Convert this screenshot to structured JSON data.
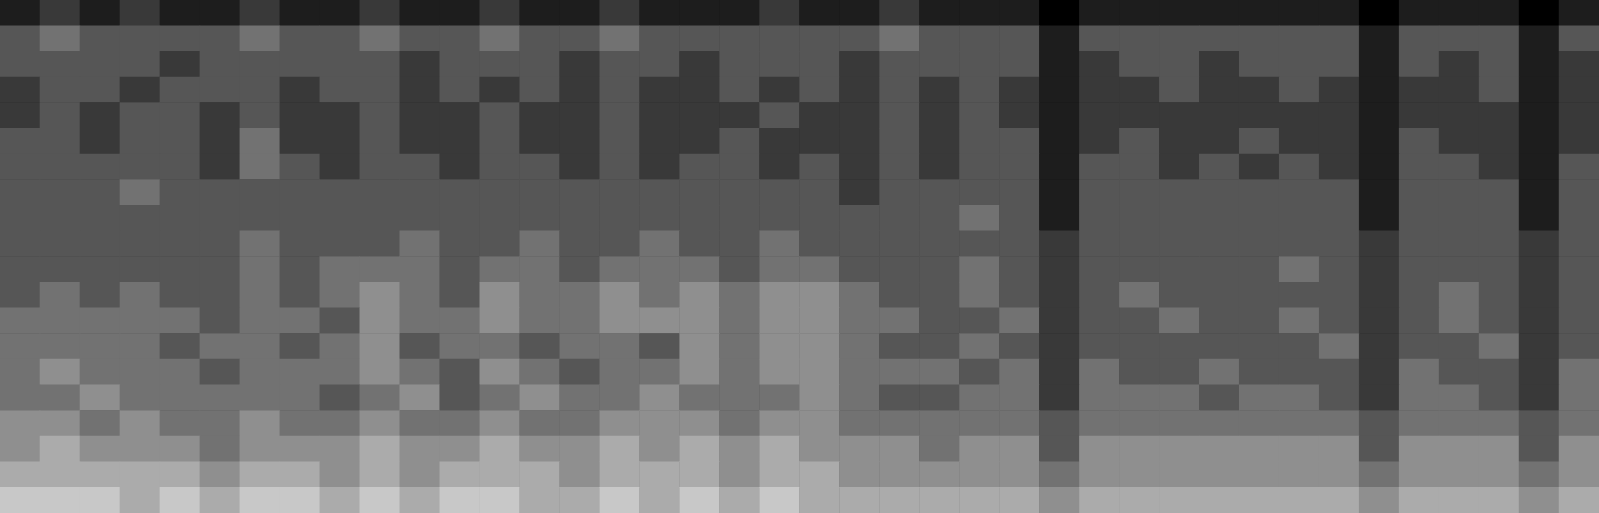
{
  "chart_data": {
    "type": "heatmap",
    "color": "#c8c8c8",
    "tick_labels": false,
    "grid": false,
    "cells": [
      [
        1,
        2,
        1,
        2,
        1,
        1,
        2,
        1,
        1,
        2,
        1,
        1,
        2,
        1,
        1,
        2,
        1,
        1,
        1,
        2,
        1,
        1,
        2,
        1,
        1,
        1,
        0,
        1,
        1,
        1,
        1,
        1,
        1,
        1,
        0,
        1,
        1,
        1,
        0,
        1
      ],
      [
        3,
        4,
        3,
        3,
        3,
        3,
        4,
        3,
        3,
        4,
        3,
        3,
        4,
        3,
        3,
        4,
        3,
        3,
        3,
        3,
        3,
        3,
        4,
        3,
        3,
        3,
        1,
        3,
        3,
        3,
        3,
        3,
        3,
        3,
        1,
        3,
        3,
        3,
        1,
        3
      ],
      [
        3,
        3,
        3,
        3,
        2,
        3,
        3,
        3,
        3,
        3,
        2,
        3,
        3,
        3,
        2,
        3,
        3,
        2,
        3,
        3,
        3,
        2,
        3,
        3,
        3,
        3,
        1,
        2,
        3,
        3,
        2,
        3,
        3,
        3,
        1,
        3,
        2,
        3,
        1,
        2
      ],
      [
        2,
        3,
        3,
        2,
        3,
        3,
        3,
        2,
        3,
        3,
        2,
        3,
        2,
        3,
        2,
        3,
        2,
        2,
        3,
        2,
        3,
        2,
        3,
        2,
        3,
        2,
        1,
        2,
        2,
        3,
        2,
        2,
        3,
        2,
        1,
        2,
        2,
        3,
        1,
        2
      ],
      [
        2,
        3,
        2,
        3,
        3,
        2,
        3,
        2,
        2,
        3,
        2,
        2,
        3,
        2,
        2,
        3,
        2,
        2,
        2,
        3,
        2,
        2,
        3,
        2,
        3,
        2,
        1,
        2,
        2,
        2,
        2,
        2,
        2,
        2,
        1,
        2,
        2,
        2,
        1,
        2
      ],
      [
        3,
        3,
        2,
        3,
        3,
        2,
        4,
        2,
        2,
        3,
        2,
        2,
        3,
        2,
        2,
        3,
        2,
        2,
        3,
        2,
        2,
        2,
        3,
        2,
        3,
        3,
        1,
        2,
        3,
        2,
        2,
        3,
        2,
        2,
        1,
        3,
        2,
        2,
        1,
        2
      ],
      [
        3,
        3,
        3,
        3,
        3,
        2,
        4,
        3,
        2,
        3,
        3,
        2,
        3,
        3,
        2,
        3,
        2,
        3,
        3,
        2,
        3,
        2,
        3,
        2,
        3,
        3,
        1,
        3,
        3,
        2,
        3,
        2,
        3,
        2,
        1,
        3,
        3,
        2,
        1,
        3
      ],
      [
        3,
        3,
        3,
        4,
        3,
        3,
        3,
        3,
        3,
        3,
        3,
        3,
        3,
        3,
        3,
        3,
        3,
        3,
        3,
        3,
        3,
        2,
        3,
        3,
        3,
        3,
        1,
        3,
        3,
        3,
        3,
        3,
        3,
        3,
        1,
        3,
        3,
        3,
        1,
        3
      ],
      [
        3,
        3,
        3,
        3,
        3,
        3,
        3,
        3,
        3,
        3,
        3,
        3,
        3,
        3,
        3,
        3,
        3,
        3,
        3,
        3,
        3,
        3,
        3,
        3,
        4,
        3,
        1,
        3,
        3,
        3,
        3,
        3,
        3,
        3,
        1,
        3,
        3,
        3,
        1,
        3
      ],
      [
        3,
        3,
        3,
        3,
        3,
        3,
        4,
        3,
        3,
        3,
        4,
        3,
        3,
        4,
        3,
        3,
        4,
        3,
        3,
        4,
        3,
        3,
        3,
        3,
        3,
        3,
        2,
        3,
        3,
        3,
        3,
        3,
        3,
        3,
        2,
        3,
        3,
        3,
        2,
        3
      ],
      [
        3,
        3,
        3,
        3,
        3,
        3,
        4,
        3,
        4,
        4,
        4,
        3,
        4,
        4,
        3,
        4,
        4,
        4,
        3,
        4,
        4,
        3,
        3,
        3,
        4,
        3,
        2,
        3,
        3,
        3,
        3,
        3,
        4,
        3,
        2,
        3,
        3,
        3,
        2,
        3
      ],
      [
        3,
        4,
        3,
        4,
        3,
        3,
        4,
        3,
        4,
        5,
        4,
        3,
        5,
        4,
        4,
        5,
        4,
        5,
        4,
        5,
        5,
        4,
        3,
        3,
        4,
        3,
        2,
        3,
        4,
        3,
        3,
        3,
        3,
        3,
        2,
        3,
        4,
        3,
        2,
        3
      ],
      [
        4,
        4,
        4,
        4,
        4,
        3,
        4,
        4,
        3,
        5,
        4,
        4,
        5,
        4,
        4,
        5,
        5,
        5,
        4,
        5,
        5,
        4,
        4,
        3,
        3,
        4,
        2,
        3,
        3,
        4,
        3,
        3,
        4,
        3,
        2,
        3,
        4,
        3,
        2,
        3
      ],
      [
        4,
        4,
        4,
        4,
        3,
        4,
        4,
        3,
        4,
        5,
        3,
        4,
        4,
        3,
        4,
        4,
        3,
        5,
        4,
        5,
        5,
        4,
        3,
        3,
        4,
        3,
        2,
        3,
        3,
        3,
        3,
        3,
        3,
        4,
        2,
        3,
        3,
        4,
        2,
        3
      ],
      [
        4,
        5,
        4,
        4,
        4,
        3,
        4,
        4,
        4,
        5,
        4,
        3,
        5,
        4,
        3,
        4,
        4,
        5,
        4,
        5,
        5,
        4,
        4,
        4,
        3,
        4,
        2,
        4,
        3,
        3,
        4,
        3,
        3,
        3,
        2,
        4,
        3,
        3,
        2,
        4
      ],
      [
        4,
        4,
        5,
        4,
        4,
        4,
        4,
        4,
        3,
        4,
        5,
        3,
        4,
        5,
        4,
        4,
        5,
        4,
        4,
        4,
        5,
        4,
        3,
        3,
        4,
        4,
        2,
        4,
        4,
        4,
        3,
        4,
        4,
        3,
        2,
        4,
        4,
        3,
        2,
        4
      ],
      [
        5,
        5,
        4,
        5,
        4,
        4,
        5,
        4,
        4,
        5,
        4,
        4,
        5,
        4,
        4,
        5,
        5,
        5,
        4,
        5,
        5,
        4,
        4,
        4,
        4,
        4,
        3,
        4,
        4,
        4,
        4,
        4,
        4,
        4,
        3,
        4,
        4,
        4,
        3,
        4
      ],
      [
        5,
        6,
        5,
        5,
        5,
        4,
        5,
        5,
        5,
        6,
        5,
        5,
        6,
        5,
        5,
        6,
        5,
        6,
        5,
        6,
        5,
        5,
        5,
        4,
        5,
        5,
        3,
        5,
        5,
        5,
        5,
        5,
        5,
        5,
        3,
        5,
        5,
        5,
        3,
        5
      ],
      [
        6,
        6,
        6,
        6,
        6,
        5,
        6,
        6,
        5,
        6,
        5,
        6,
        6,
        6,
        5,
        6,
        6,
        6,
        5,
        6,
        6,
        5,
        5,
        5,
        5,
        5,
        4,
        5,
        5,
        5,
        5,
        5,
        5,
        5,
        4,
        5,
        5,
        5,
        4,
        5
      ],
      [
        7,
        7,
        7,
        6,
        7,
        6,
        7,
        7,
        6,
        7,
        6,
        7,
        7,
        6,
        6,
        7,
        6,
        7,
        6,
        7,
        6,
        6,
        6,
        6,
        6,
        6,
        5,
        6,
        6,
        6,
        6,
        6,
        6,
        6,
        5,
        6,
        6,
        6,
        5,
        6
      ]
    ]
  }
}
